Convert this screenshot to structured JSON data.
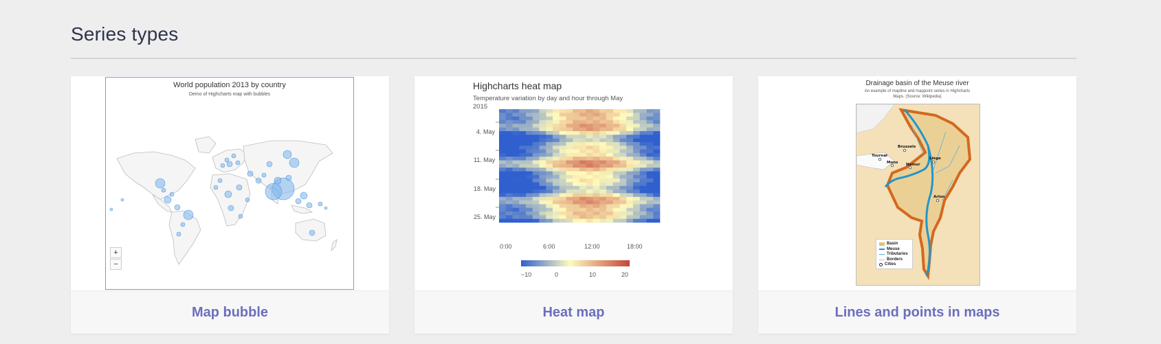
{
  "section": {
    "title": "Series types"
  },
  "cards": [
    {
      "label": "Map bubble",
      "chart_title": "World population 2013 by country",
      "chart_subtitle": "Demo of Highcharts map with bubbles",
      "zoom_in": "+",
      "zoom_out": "−"
    },
    {
      "label": "Heat map",
      "chart_title": "Highcharts heat map",
      "chart_subtitle": "Temperature variation by day and hour through May 2015"
    },
    {
      "label": "Lines and points in maps",
      "chart_title": "Drainage basin of the Meuse river",
      "chart_subtitle": "An example of mapline and mappoint series in Highcharts Maps. (Source: Wikipedia)",
      "cities": [
        "Brussels",
        "Tournai",
        "Mons",
        "Namur",
        "Liège",
        "Arlon"
      ],
      "legend": [
        "Basin",
        "Meuse",
        "Tributaries",
        "Borders",
        "Cities"
      ]
    }
  ],
  "chart_data": {
    "type": "heatmap",
    "title": "Highcharts heat map",
    "subtitle": "Temperature variation by day and hour through May 2015",
    "y_ticks": [
      "4. May",
      "11. May",
      "18. May",
      "25. May"
    ],
    "x_ticks": [
      "0:00",
      "6:00",
      "12:00",
      "18:00"
    ],
    "color_axis": {
      "min": -15,
      "max": 25,
      "ticks": [
        "−10",
        "0",
        "10",
        "20"
      ],
      "colors": [
        "#3060cf",
        "#fffbbc",
        "#c4463a"
      ]
    }
  },
  "colors": {
    "accent": "#6c6ebd",
    "title": "#30334a",
    "bubble": "#7cb5ec"
  }
}
